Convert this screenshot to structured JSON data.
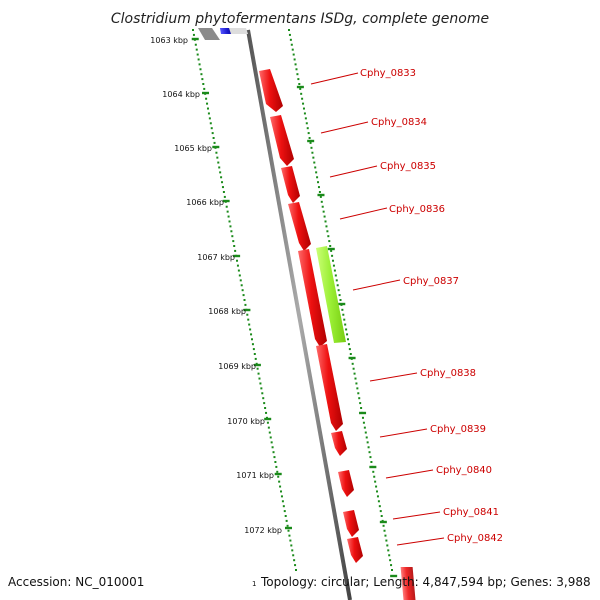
{
  "title": "Clostridium phytofermentans ISDg, complete genome",
  "accession": "Accession: NC_010001",
  "footer_info": "Topology: circular; Length: 4,847,594 bp; Genes: 3,988",
  "footer_marker": "1",
  "colors": {
    "ruler": "#1a8a1a",
    "backbone": "#888888",
    "gene_forward": "#ee1111",
    "gene_highlight": "#99ee33",
    "gene_blue": "#1a1acc",
    "label": "#cc0000"
  },
  "ruler_labels": [
    "1063 kbp",
    "1064 kbp",
    "1065 kbp",
    "1066 kbp",
    "1067 kbp",
    "1068 kbp",
    "1069 kbp",
    "1070 kbp",
    "1071 kbp",
    "1072 kbp"
  ],
  "gene_labels": [
    "Cphy_0833",
    "Cphy_0834",
    "Cphy_0835",
    "Cphy_0836",
    "Cphy_0837",
    "Cphy_0838",
    "Cphy_0839",
    "Cphy_0840",
    "Cphy_0841",
    "Cphy_0842"
  ]
}
